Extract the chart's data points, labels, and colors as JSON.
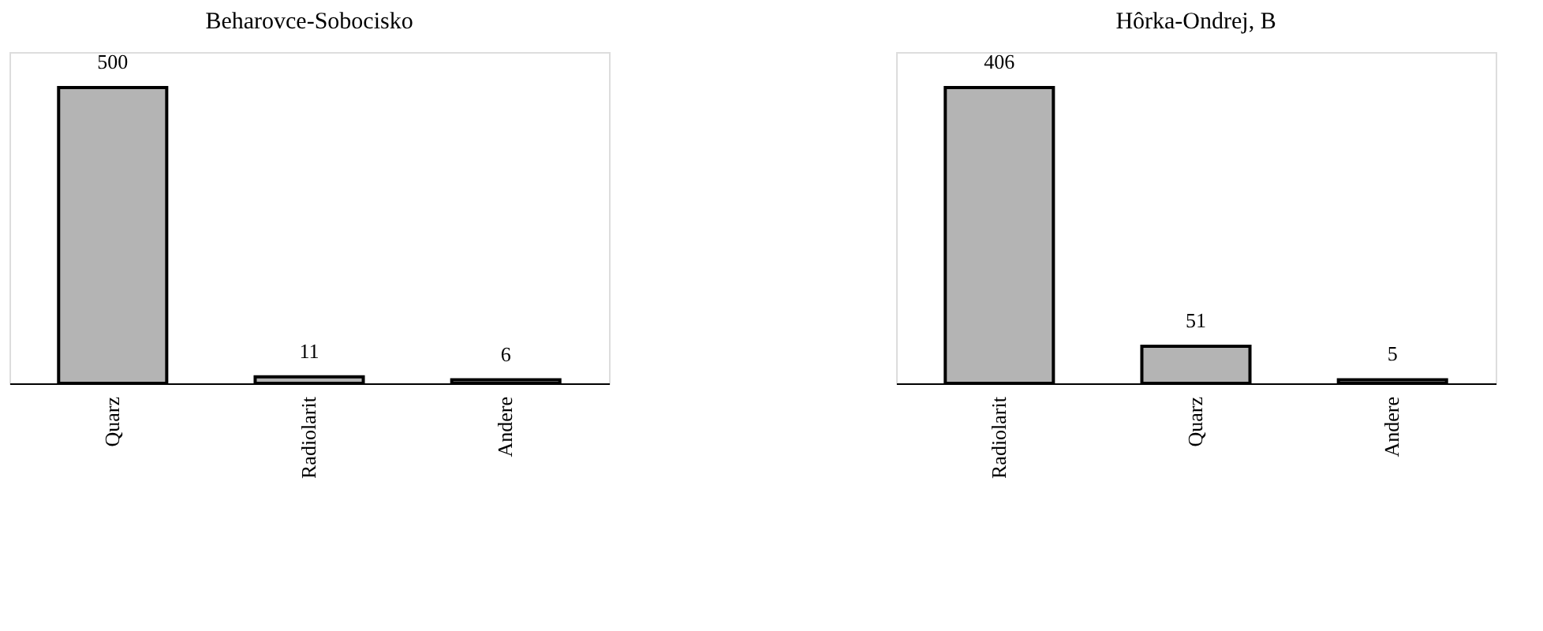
{
  "chart_data": [
    {
      "type": "bar",
      "title": "Beharovce-Sobocisko",
      "categories": [
        "Quarz",
        "Radiolarit",
        "Andere"
      ],
      "values": [
        500,
        11,
        6
      ],
      "color": "#b4b4b4",
      "data_labels": true,
      "grid": false,
      "tick_labels": "x"
    },
    {
      "type": "bar",
      "title": "Hôrka-Ondrej, B",
      "categories": [
        "Radiolarit",
        "Quarz",
        "Andere"
      ],
      "values": [
        406,
        51,
        5
      ],
      "color": "#b4b4b4",
      "data_labels": true,
      "grid": false,
      "tick_labels": "x"
    }
  ]
}
